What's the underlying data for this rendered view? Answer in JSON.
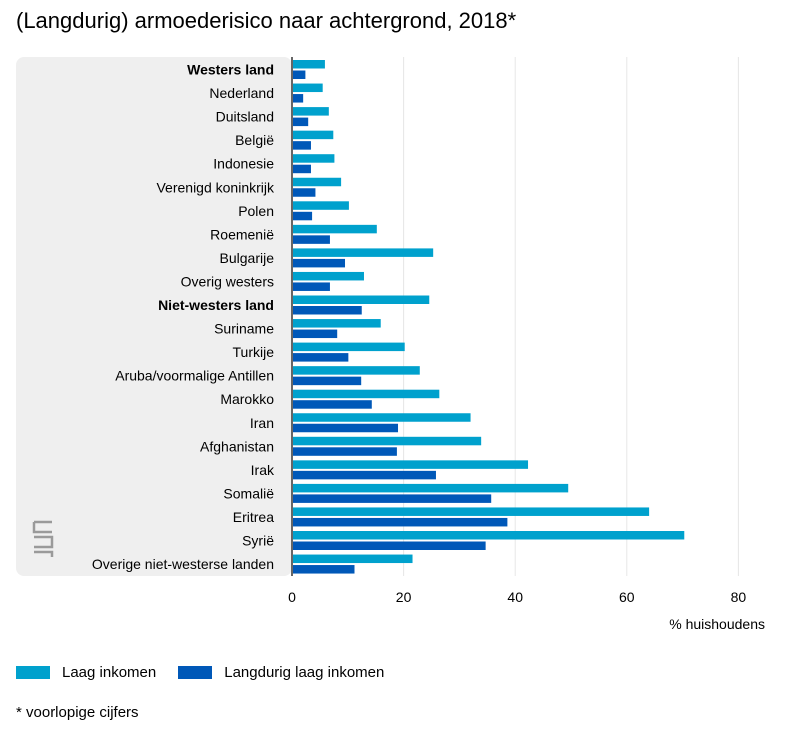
{
  "title": "(Langdurig) armoederisico naar achtergrond, 2018*",
  "footnote": "* voorlopige cijfers",
  "colors": {
    "laag": "#00a1cd",
    "langdurig": "#0058b8",
    "panel": "#efefef",
    "grid": "#e6e6e6",
    "axis": "#666666"
  },
  "logo": "cbs-logo",
  "chart_data": {
    "type": "bar",
    "orientation": "horizontal",
    "categories": [
      "Westers land",
      "Nederland",
      "Duitsland",
      "België",
      "Indonesie",
      "Verenigd koninkrijk",
      "Polen",
      "Roemenië",
      "Bulgarije",
      "Overig westers",
      "Niet-westers land",
      "Suriname",
      "Turkije",
      "Aruba/voormalige Antillen",
      "Marokko",
      "Iran",
      "Afghanistan",
      "Irak",
      "Somalië",
      "Eritrea",
      "Syrië",
      "Overige niet-westerse landen"
    ],
    "bold_categories": [
      "Westers land",
      "Niet-westers land"
    ],
    "series": [
      {
        "name": "Laag inkomen",
        "values": [
          5.9,
          5.5,
          6.6,
          7.4,
          7.6,
          8.8,
          10.2,
          15.2,
          25.3,
          12.9,
          24.6,
          15.9,
          20.2,
          22.9,
          26.4,
          32.0,
          33.9,
          42.3,
          49.5,
          64.0,
          70.3,
          21.6
        ]
      },
      {
        "name": "Langdurig laag inkomen",
        "values": [
          2.4,
          2.0,
          2.9,
          3.4,
          3.4,
          4.2,
          3.6,
          6.8,
          9.5,
          6.8,
          12.5,
          8.1,
          10.1,
          12.4,
          14.3,
          19.0,
          18.8,
          25.8,
          35.7,
          38.6,
          34.7,
          11.2
        ]
      }
    ],
    "xlim": [
      0,
      80
    ],
    "ticks": [
      0,
      20,
      40,
      60,
      80
    ],
    "xlabel": "% huishoudens",
    "grid": true,
    "legend_position": "bottom-left"
  }
}
